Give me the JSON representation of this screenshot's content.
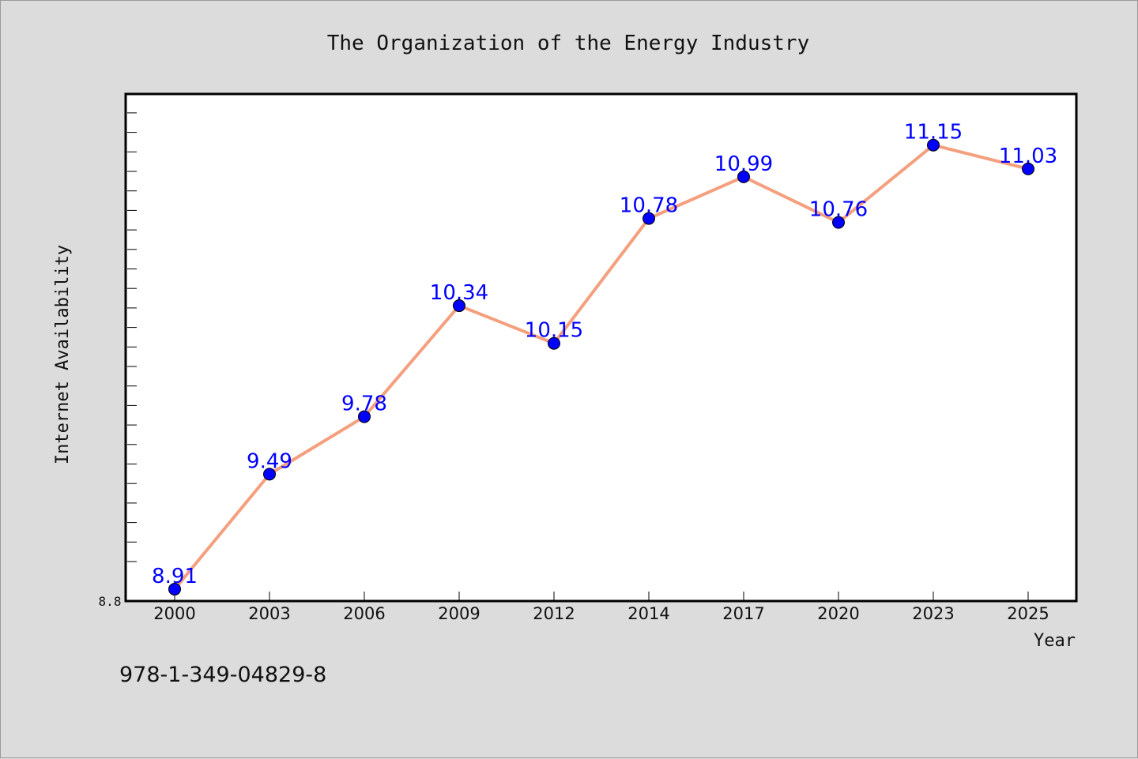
{
  "chart_data": {
    "type": "line",
    "title": "The Organization of the Energy Industry",
    "xlabel": "Year",
    "ylabel": "Internet Availability",
    "categories": [
      "2000",
      "2003",
      "2006",
      "2009",
      "2012",
      "2014",
      "2017",
      "2020",
      "2023",
      "2025"
    ],
    "series": [
      {
        "values": [
          8.91,
          9.49,
          9.78,
          10.34,
          10.15,
          10.78,
          10.99,
          10.76,
          11.15,
          11.03
        ]
      }
    ],
    "data_labels": [
      "8.91",
      "9.49",
      "9.78",
      "10.34",
      "10.15",
      "10.78",
      "10.99",
      "10.76",
      "11.15",
      "11.03"
    ],
    "y_tick_labels": [
      "8.8"
    ],
    "ylim": [
      8.85,
      11.4
    ],
    "grid": false,
    "line_color": "#f4a07e",
    "marker_color": "#0000ff",
    "label_color": "#0000ff"
  },
  "footer": {
    "isbn": "978-1-349-04829-8"
  }
}
